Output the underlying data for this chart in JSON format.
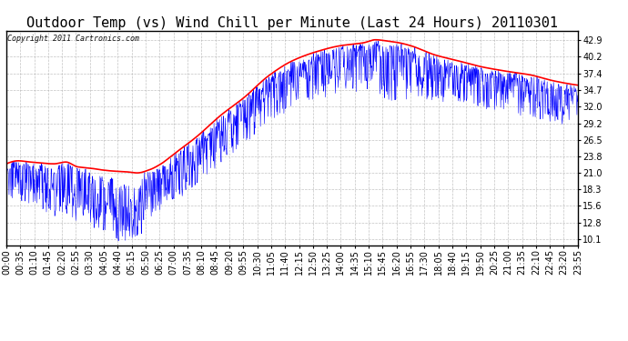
{
  "title": "Outdoor Temp (vs) Wind Chill per Minute (Last 24 Hours) 20110301",
  "copyright_text": "Copyright 2011 Cartronics.com",
  "y_ticks": [
    10.1,
    12.8,
    15.6,
    18.3,
    21.0,
    23.8,
    26.5,
    29.2,
    32.0,
    34.7,
    37.4,
    40.2,
    42.9
  ],
  "y_min": 9.0,
  "y_max": 44.5,
  "x_tick_labels": [
    "00:00",
    "00:35",
    "01:10",
    "01:45",
    "02:20",
    "02:55",
    "03:30",
    "04:05",
    "04:40",
    "05:15",
    "05:50",
    "06:25",
    "07:00",
    "07:35",
    "08:10",
    "08:45",
    "09:20",
    "09:55",
    "10:30",
    "11:05",
    "11:40",
    "12:15",
    "12:50",
    "13:25",
    "14:00",
    "14:35",
    "15:10",
    "15:45",
    "16:20",
    "16:55",
    "17:30",
    "18:05",
    "18:40",
    "19:15",
    "19:50",
    "20:25",
    "21:00",
    "21:35",
    "22:10",
    "22:45",
    "23:20",
    "23:55"
  ],
  "bg_color": "#ffffff",
  "plot_bg_color": "#ffffff",
  "grid_color": "#aaaaaa",
  "blue_color": "#0000ff",
  "red_color": "#ff0000",
  "title_fontsize": 11,
  "tick_fontsize": 7,
  "n_minutes": 1440
}
